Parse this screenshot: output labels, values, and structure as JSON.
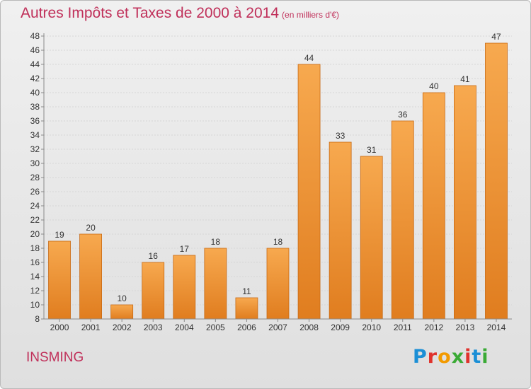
{
  "title": "Autres Impôts et Taxes de 2000 à 2014",
  "title_unit": "(en milliers d'€)",
  "commune": "INSMING",
  "logo": {
    "text": "Proxiti",
    "colors": [
      "#1b8fd6",
      "#e0322c",
      "#f29a00",
      "#3aaa35",
      "#e0322c",
      "#1b8fd6",
      "#3aaa35"
    ]
  },
  "colors": {
    "bar_top": "#f7a94f",
    "bar_bottom": "#e07d1f",
    "bar_edge": "#c86a14",
    "title": "#c0305a",
    "axis": "#8a8a8a",
    "grid": "#d6d6d6"
  },
  "chart_data": {
    "type": "bar",
    "categories": [
      "2000",
      "2001",
      "2002",
      "2003",
      "2004",
      "2005",
      "2006",
      "2007",
      "2008",
      "2009",
      "2010",
      "2011",
      "2012",
      "2013",
      "2014"
    ],
    "values": [
      19,
      20,
      10,
      16,
      17,
      18,
      11,
      18,
      44,
      33,
      31,
      36,
      40,
      41,
      47
    ],
    "ylim": [
      8,
      48
    ],
    "yticks": [
      "8",
      "10",
      "12",
      "14",
      "16",
      "18",
      "20",
      "22",
      "24",
      "26",
      "28",
      "30",
      "32",
      "34",
      "36",
      "38",
      "40",
      "42",
      "44",
      "46",
      "48"
    ],
    "grid": true
  }
}
